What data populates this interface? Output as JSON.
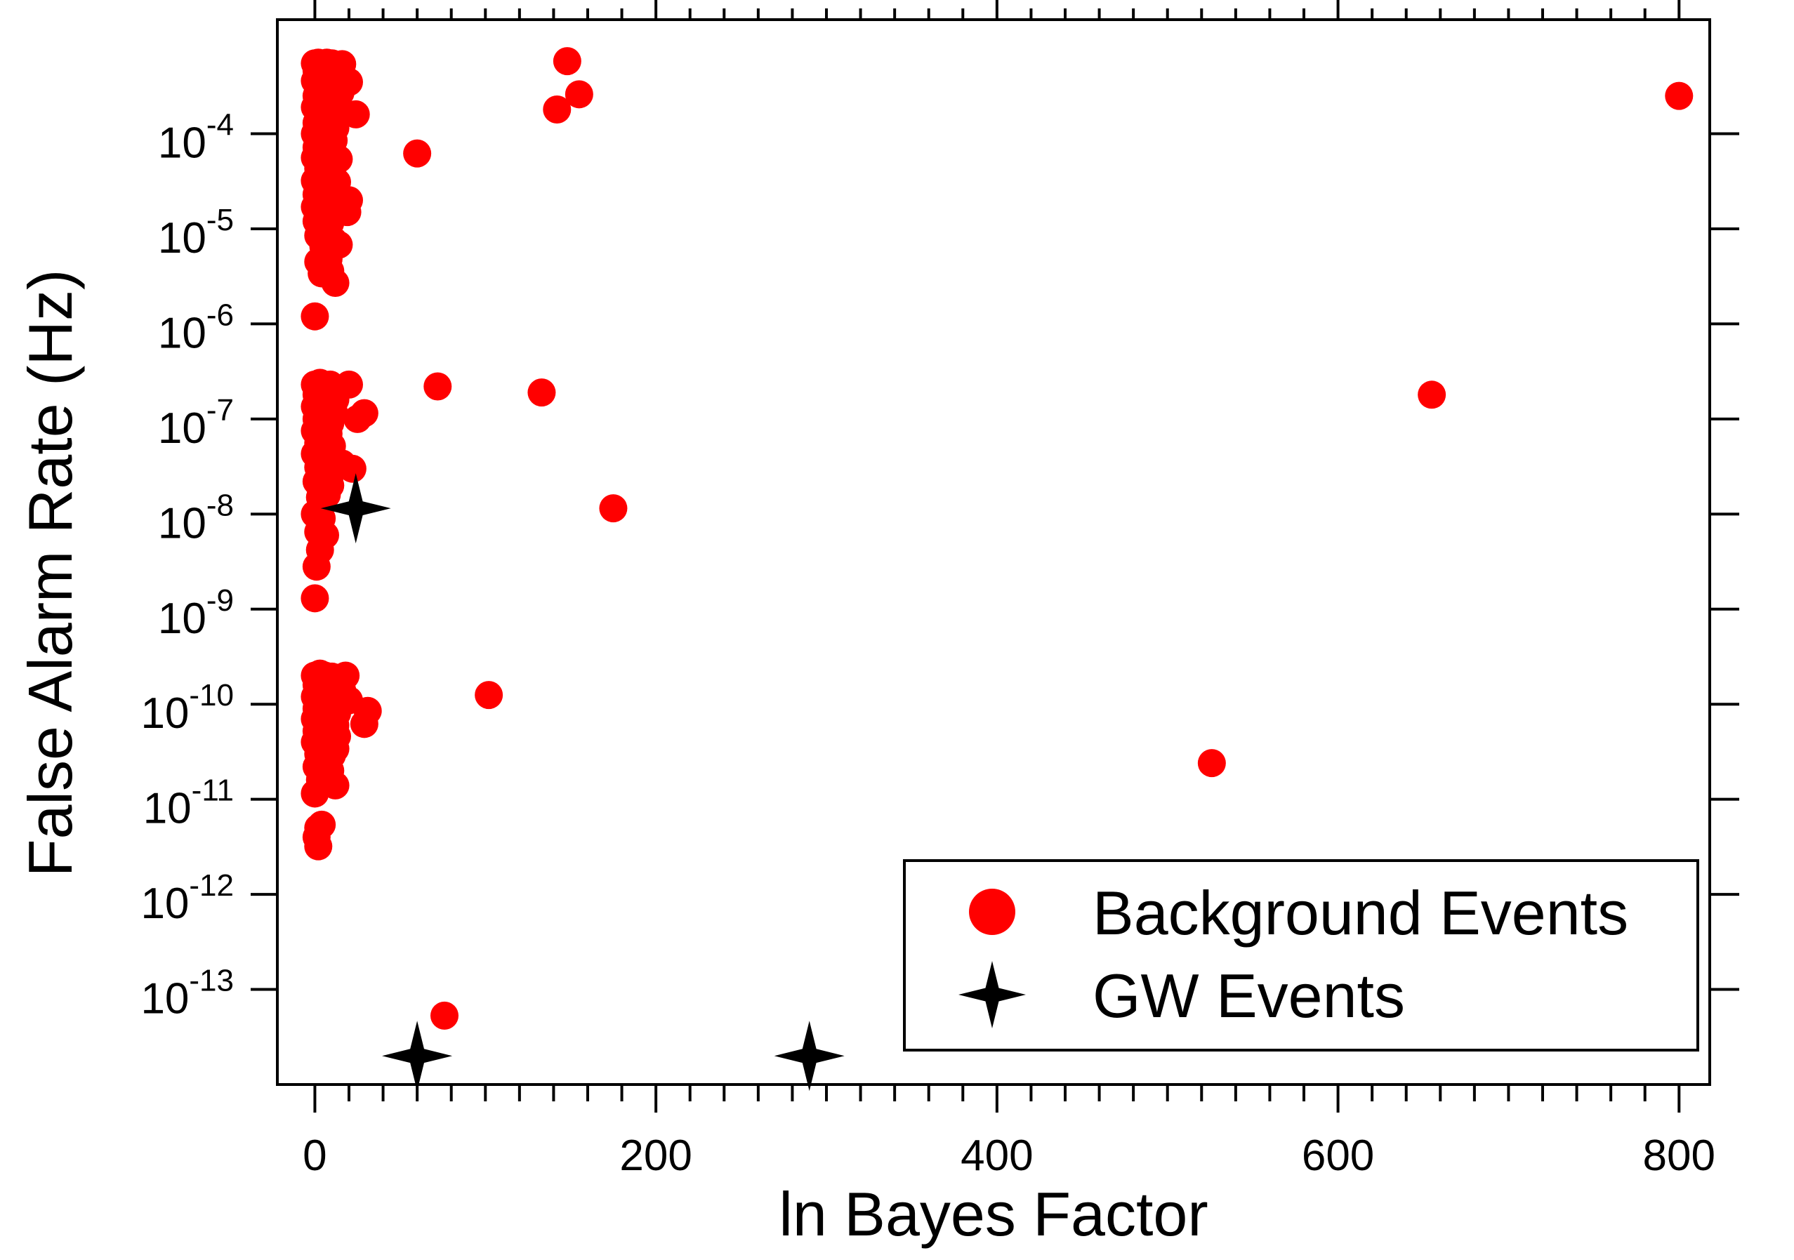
{
  "chart_data": {
    "type": "scatter",
    "title": "",
    "xlabel": "ln Bayes Factor",
    "ylabel": "False Alarm Rate (Hz)",
    "x_ticks": [
      "0",
      "200",
      "400",
      "600",
      "800"
    ],
    "x_tick_values": [
      0,
      200,
      400,
      600,
      800
    ],
    "xlim": [
      -22,
      818
    ],
    "y_scale": "log",
    "y_tick_exponents": [
      -4,
      -5,
      -6,
      -7,
      -8,
      -9,
      -10,
      -11,
      -12,
      -13
    ],
    "y_tick_labels": [
      {
        "base": "10",
        "exp": "-4"
      },
      {
        "base": "10",
        "exp": "-5"
      },
      {
        "base": "10",
        "exp": "-6"
      },
      {
        "base": "10",
        "exp": "-7"
      },
      {
        "base": "10",
        "exp": "-8"
      },
      {
        "base": "10",
        "exp": "-9"
      },
      {
        "base": "10",
        "exp": "-10"
      },
      {
        "base": "10",
        "exp": "-11"
      },
      {
        "base": "10",
        "exp": "-12"
      },
      {
        "base": "10",
        "exp": "-13"
      }
    ],
    "ylim_log10": [
      -14.0,
      -2.8
    ],
    "grid": false,
    "legend_position": "bottom-right",
    "series": [
      {
        "name": "Background Events",
        "color": "#ff0000",
        "marker": "circle",
        "points": [
          [
            0,
            0.00055
          ],
          [
            2,
            0.00056
          ],
          [
            4,
            0.00054
          ],
          [
            7,
            0.00056
          ],
          [
            10,
            0.00055
          ],
          [
            13,
            0.00053
          ],
          [
            16,
            0.00054
          ],
          [
            1,
            0.00046
          ],
          [
            3,
            0.00044
          ],
          [
            6,
            0.00047
          ],
          [
            9,
            0.00045
          ],
          [
            12,
            0.00043
          ],
          [
            15,
            0.00044
          ],
          [
            20,
            0.00035
          ],
          [
            0,
            0.00036
          ],
          [
            3,
            0.00034
          ],
          [
            6,
            0.00032
          ],
          [
            9,
            0.0003
          ],
          [
            12,
            0.00032
          ],
          [
            15,
            0.00027
          ],
          [
            1,
            0.00025
          ],
          [
            4,
            0.00023
          ],
          [
            8,
            0.00024
          ],
          [
            12,
            0.00021
          ],
          [
            0,
            0.00019
          ],
          [
            3,
            0.00018
          ],
          [
            7,
            0.00016
          ],
          [
            11,
            0.00017
          ],
          [
            24,
            0.00016
          ],
          [
            1,
            0.00013
          ],
          [
            4,
            0.000125
          ],
          [
            8,
            0.00012
          ],
          [
            12,
            0.000115
          ],
          [
            0,
            0.0001
          ],
          [
            3,
            9.5e-05
          ],
          [
            7,
            9e-05
          ],
          [
            11,
            8.5e-05
          ],
          [
            1,
            7.2e-05
          ],
          [
            5,
            7e-05
          ],
          [
            9,
            6.8e-05
          ],
          [
            0,
            5.6e-05
          ],
          [
            4,
            5.4e-05
          ],
          [
            8,
            5.2e-05
          ],
          [
            14,
            5.4e-05
          ],
          [
            2,
            4.3e-05
          ],
          [
            6,
            4e-05
          ],
          [
            10,
            4.1e-05
          ],
          [
            0,
            3.2e-05
          ],
          [
            4,
            3e-05
          ],
          [
            8,
            2.9e-05
          ],
          [
            13,
            3.1e-05
          ],
          [
            1,
            2.3e-05
          ],
          [
            5,
            2.2e-05
          ],
          [
            9,
            2.1e-05
          ],
          [
            20,
            2e-05
          ],
          [
            0,
            1.7e-05
          ],
          [
            4,
            1.6e-05
          ],
          [
            8,
            1.55e-05
          ],
          [
            13,
            1.6e-05
          ],
          [
            19,
            1.5e-05
          ],
          [
            1,
            1.2e-05
          ],
          [
            5,
            1.1e-05
          ],
          [
            9,
            1.15e-05
          ],
          [
            2,
            8.5e-06
          ],
          [
            7,
            8.2e-06
          ],
          [
            11,
            7.5e-06
          ],
          [
            5,
            6.5e-06
          ],
          [
            14,
            6.8e-06
          ],
          [
            2,
            4.5e-06
          ],
          [
            8,
            4.8e-06
          ],
          [
            4,
            3.4e-06
          ],
          [
            9,
            3.6e-06
          ],
          [
            12,
            2.7e-06
          ],
          [
            0,
            1.2e-06
          ],
          [
            60,
            6.2e-05
          ],
          [
            148,
            0.00058
          ],
          [
            155,
            0.00026
          ],
          [
            142,
            0.00018
          ],
          [
            800,
            0.00025
          ],
          [
            0,
            2.3e-07
          ],
          [
            3,
            2.4e-07
          ],
          [
            6,
            2.2e-07
          ],
          [
            9,
            2.3e-07
          ],
          [
            13,
            2.1e-07
          ],
          [
            20,
            2.3e-07
          ],
          [
            1,
            1.8e-07
          ],
          [
            4,
            1.7e-07
          ],
          [
            8,
            1.75e-07
          ],
          [
            12,
            1.6e-07
          ],
          [
            0,
            1.35e-07
          ],
          [
            3,
            1.3e-07
          ],
          [
            7,
            1.25e-07
          ],
          [
            11,
            1.2e-07
          ],
          [
            29,
            1.15e-07
          ],
          [
            25,
            1e-07
          ],
          [
            1,
            1e-07
          ],
          [
            5,
            9.5e-08
          ],
          [
            9,
            9e-08
          ],
          [
            0,
            7.5e-08
          ],
          [
            4,
            7.2e-08
          ],
          [
            8,
            7e-08
          ],
          [
            2,
            5.6e-08
          ],
          [
            6,
            5.4e-08
          ],
          [
            10,
            5.2e-08
          ],
          [
            0,
            4.3e-08
          ],
          [
            4,
            4e-08
          ],
          [
            8,
            3.8e-08
          ],
          [
            16,
            3.4e-08
          ],
          [
            22,
            3e-08
          ],
          [
            2,
            3.1e-08
          ],
          [
            6,
            2.9e-08
          ],
          [
            10,
            2.8e-08
          ],
          [
            1,
            2.2e-08
          ],
          [
            5,
            2.1e-08
          ],
          [
            9,
            2e-08
          ],
          [
            3,
            1.5e-08
          ],
          [
            7,
            1.6e-08
          ],
          [
            0,
            1e-08
          ],
          [
            4,
            9e-09
          ],
          [
            2,
            6.5e-09
          ],
          [
            6,
            6e-09
          ],
          [
            3,
            4.2e-09
          ],
          [
            1,
            2.8e-09
          ],
          [
            0,
            1.3e-09
          ],
          [
            72,
            2.2e-07
          ],
          [
            133,
            1.9e-07
          ],
          [
            175,
            1.15e-08
          ],
          [
            655,
            1.8e-07
          ],
          [
            0,
            2e-10
          ],
          [
            3,
            2.1e-10
          ],
          [
            6,
            2e-10
          ],
          [
            10,
            1.95e-10
          ],
          [
            14,
            1.9e-10
          ],
          [
            18,
            2e-10
          ],
          [
            1,
            1.6e-10
          ],
          [
            4,
            1.55e-10
          ],
          [
            8,
            1.5e-10
          ],
          [
            12,
            1.45e-10
          ],
          [
            16,
            1.4e-10
          ],
          [
            0,
            1.2e-10
          ],
          [
            3,
            1.15e-10
          ],
          [
            7,
            1.1e-10
          ],
          [
            11,
            1.05e-10
          ],
          [
            15,
            1e-10
          ],
          [
            20,
            1.1e-10
          ],
          [
            1,
            9e-11
          ],
          [
            5,
            8.5e-11
          ],
          [
            9,
            8.2e-11
          ],
          [
            13,
            8e-11
          ],
          [
            31,
            8.5e-11
          ],
          [
            0,
            7e-11
          ],
          [
            4,
            6.5e-11
          ],
          [
            8,
            6.2e-11
          ],
          [
            12,
            6e-11
          ],
          [
            29,
            6.2e-11
          ],
          [
            1,
            5.2e-11
          ],
          [
            5,
            5e-11
          ],
          [
            9,
            4.8e-11
          ],
          [
            13,
            4.6e-11
          ],
          [
            0,
            4e-11
          ],
          [
            4,
            3.8e-11
          ],
          [
            8,
            3.6e-11
          ],
          [
            12,
            3.4e-11
          ],
          [
            2,
            3e-11
          ],
          [
            6,
            2.8e-11
          ],
          [
            10,
            2.9e-11
          ],
          [
            1,
            2.2e-11
          ],
          [
            5,
            2.1e-11
          ],
          [
            9,
            2e-11
          ],
          [
            3,
            1.6e-11
          ],
          [
            8,
            1.5e-11
          ],
          [
            12,
            1.4e-11
          ],
          [
            0,
            1.15e-11
          ],
          [
            2,
            5e-12
          ],
          [
            4,
            5.4e-12
          ],
          [
            1,
            4e-12
          ],
          [
            2,
            3.2e-12
          ],
          [
            102,
            1.25e-10
          ],
          [
            526,
            2.4e-11
          ],
          [
            76,
            5.3e-14
          ]
        ]
      },
      {
        "name": "GW Events",
        "color": "#000000",
        "marker": "star4",
        "points": [
          [
            24,
            1.15e-08
          ],
          [
            60,
            2e-14
          ],
          [
            290,
            2e-14
          ]
        ]
      }
    ]
  }
}
